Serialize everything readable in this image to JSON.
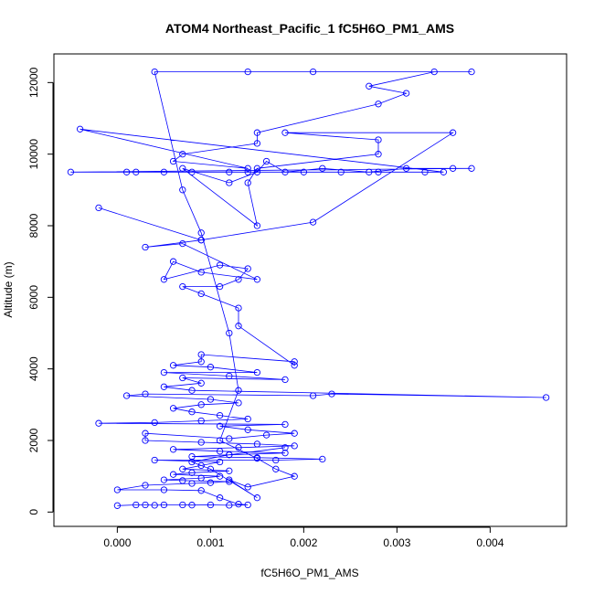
{
  "chart_data": {
    "type": "scatter",
    "connected": true,
    "title": "ATOM4 Northeast_Pacific_1 fC5H6O_PM1_AMS",
    "xlabel": "fC5H6O_PM1_AMS",
    "ylabel": "Altitude (m)",
    "xlim": [
      -0.00068,
      0.00482
    ],
    "ylim": [
      -400,
      12800
    ],
    "x_ticks": [
      0,
      0.001,
      0.002,
      0.003,
      0.004
    ],
    "x_tick_labels": [
      "0.000",
      "0.001",
      "0.002",
      "0.003",
      "0.004"
    ],
    "y_ticks": [
      0,
      2000,
      4000,
      6000,
      8000,
      10000,
      12000
    ],
    "y_tick_labels": [
      "0",
      "2000",
      "4000",
      "6000",
      "8000",
      "10000",
      "12000"
    ],
    "series_color": "#0000ff",
    "series": [
      {
        "name": "fC5H6O_PM1_AMS",
        "points": [
          [
            0.0,
            180
          ],
          [
            0.0002,
            200
          ],
          [
            0.0003,
            200
          ],
          [
            0.0004,
            190
          ],
          [
            0.0005,
            200
          ],
          [
            0.0007,
            200
          ],
          [
            0.0008,
            195
          ],
          [
            0.001,
            200
          ],
          [
            0.0012,
            190
          ],
          [
            0.0014,
            200
          ],
          [
            0.0013,
            220
          ],
          [
            0.0011,
            400
          ],
          [
            0.0009,
            600
          ],
          [
            0.0005,
            620
          ],
          [
            0.0,
            620
          ],
          [
            0.0003,
            750
          ],
          [
            0.0008,
            800
          ],
          [
            0.001,
            820
          ],
          [
            0.0012,
            850
          ],
          [
            0.0007,
            880
          ],
          [
            0.0005,
            900
          ],
          [
            0.0009,
            950
          ],
          [
            0.0011,
            1000
          ],
          [
            0.0006,
            1050
          ],
          [
            0.0008,
            1100
          ],
          [
            0.0012,
            1150
          ],
          [
            0.0007,
            1200
          ],
          [
            0.0009,
            1300
          ],
          [
            0.0011,
            1400
          ],
          [
            0.0004,
            1450
          ],
          [
            0.0017,
            1450
          ],
          [
            0.0022,
            1480
          ],
          [
            0.0015,
            1520
          ],
          [
            0.0008,
            1550
          ],
          [
            0.0012,
            1600
          ],
          [
            0.0018,
            1650
          ],
          [
            0.0011,
            1700
          ],
          [
            0.0006,
            1750
          ],
          [
            0.0013,
            1800
          ],
          [
            0.0019,
            1850
          ],
          [
            0.0015,
            1900
          ],
          [
            0.0009,
            1950
          ],
          [
            0.0003,
            2000
          ],
          [
            0.0003,
            2200
          ],
          [
            0.0012,
            2050
          ],
          [
            0.0016,
            2150
          ],
          [
            0.0019,
            2200
          ],
          [
            0.0014,
            2300
          ],
          [
            0.0011,
            2400
          ],
          [
            0.0018,
            2450
          ],
          [
            -0.0002,
            2480
          ],
          [
            0.0004,
            2500
          ],
          [
            0.0009,
            2550
          ],
          [
            0.0014,
            2600
          ],
          [
            0.0011,
            2700
          ],
          [
            0.0008,
            2800
          ],
          [
            0.0006,
            2900
          ],
          [
            0.0009,
            3000
          ],
          [
            0.0013,
            3050
          ],
          [
            0.001,
            3150
          ],
          [
            0.0001,
            3250
          ],
          [
            0.0003,
            3300
          ],
          [
            0.0021,
            3250
          ],
          [
            0.0023,
            3300
          ],
          [
            0.0046,
            3200
          ],
          [
            0.0008,
            3400
          ],
          [
            0.0005,
            3500
          ],
          [
            0.0009,
            3600
          ],
          [
            0.0007,
            3750
          ],
          [
            0.0018,
            3700
          ],
          [
            0.0012,
            3800
          ],
          [
            0.0005,
            3900
          ],
          [
            0.0015,
            3900
          ],
          [
            0.001,
            4050
          ],
          [
            0.0006,
            4100
          ],
          [
            0.0009,
            4200
          ],
          [
            0.0009,
            4400
          ],
          [
            0.0019,
            4200
          ],
          [
            0.0019,
            4100
          ],
          [
            0.0013,
            5200
          ],
          [
            0.0013,
            5700
          ],
          [
            0.0009,
            6100
          ],
          [
            0.0007,
            6300
          ],
          [
            0.0011,
            6300
          ],
          [
            0.0013,
            6500
          ],
          [
            0.0014,
            6800
          ],
          [
            0.0011,
            6900
          ],
          [
            0.0005,
            6500
          ],
          [
            0.0006,
            7000
          ],
          [
            0.0009,
            6700
          ],
          [
            0.0015,
            6500
          ],
          [
            0.0007,
            7500
          ],
          [
            0.0003,
            7400
          ],
          [
            0.0009,
            7600
          ],
          [
            -0.0002,
            8500
          ],
          [
            0.0009,
            7600
          ],
          [
            0.0021,
            8100
          ],
          [
            0.0036,
            10600
          ],
          [
            0.0018,
            10600
          ],
          [
            0.0028,
            10400
          ],
          [
            0.0028,
            10000
          ],
          [
            0.0015,
            9600
          ],
          [
            0.0014,
            9200
          ],
          [
            0.0015,
            8000
          ],
          [
            0.0007,
            9600
          ],
          [
            0.0012,
            9200
          ],
          [
            0.0015,
            9500
          ],
          [
            0.0016,
            9800
          ],
          [
            0.0018,
            9500
          ],
          [
            0.0022,
            9600
          ],
          [
            0.0027,
            9500
          ],
          [
            0.0031,
            9600
          ],
          [
            0.0036,
            9600
          ],
          [
            0.0038,
            9600
          ],
          [
            -0.0005,
            9500
          ],
          [
            0.0001,
            9500
          ],
          [
            0.0002,
            9500
          ],
          [
            0.0005,
            9500
          ],
          [
            0.0008,
            9500
          ],
          [
            0.0012,
            9500
          ],
          [
            0.0014,
            9500
          ],
          [
            0.002,
            9500
          ],
          [
            0.0024,
            9500
          ],
          [
            0.0028,
            9500
          ],
          [
            0.0033,
            9500
          ],
          [
            0.0035,
            9500
          ],
          [
            -0.0004,
            10700
          ],
          [
            0.0014,
            9600
          ],
          [
            0.0006,
            9800
          ],
          [
            0.0007,
            10000
          ],
          [
            0.0015,
            10300
          ],
          [
            0.0015,
            10600
          ],
          [
            0.0028,
            11400
          ],
          [
            0.0031,
            11700
          ],
          [
            0.0027,
            11900
          ],
          [
            0.0034,
            12300
          ],
          [
            0.0038,
            12300
          ],
          [
            0.0021,
            12300
          ],
          [
            0.0014,
            12300
          ],
          [
            0.0004,
            12300
          ],
          [
            0.0007,
            9000
          ],
          [
            0.0009,
            7800
          ],
          [
            0.0012,
            5000
          ],
          [
            0.0013,
            3400
          ],
          [
            0.0011,
            2000
          ],
          [
            0.0015,
            1500
          ],
          [
            0.0017,
            1200
          ],
          [
            0.0019,
            1000
          ],
          [
            0.0014,
            700
          ],
          [
            0.0012,
            900
          ],
          [
            0.0015,
            400
          ],
          [
            0.001,
            1200
          ],
          [
            0.0008,
            1400
          ],
          [
            0.0012,
            1600
          ],
          [
            0.0018,
            1800
          ]
        ]
      }
    ]
  }
}
